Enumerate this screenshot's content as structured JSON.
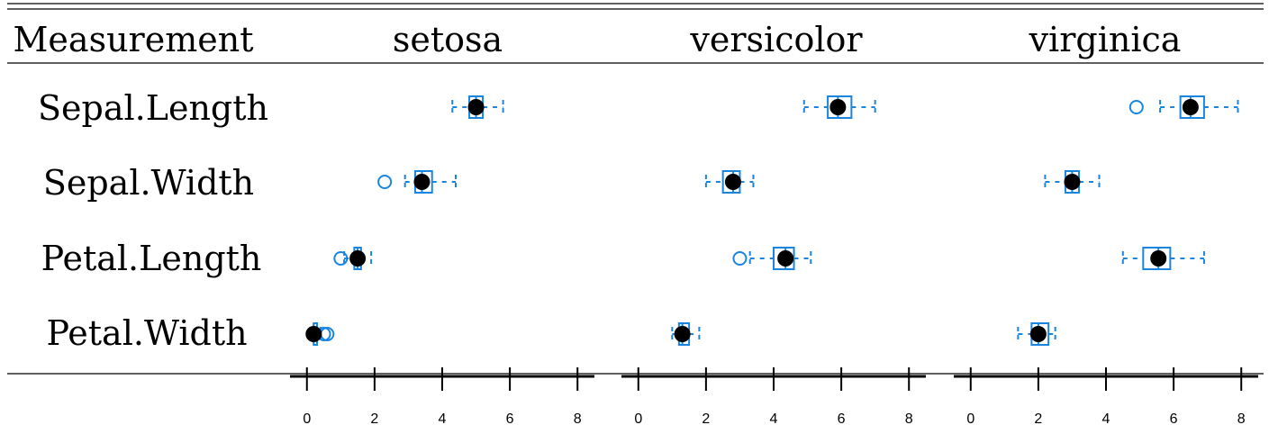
{
  "table": {
    "header_label": "Measurement",
    "rows": [
      "Sepal.Length",
      "Sepal.Width",
      "Petal.Length",
      "Petal.Width"
    ]
  },
  "colors": {
    "box": "#1a85e0",
    "median_point": "#000000",
    "rule": "#000000"
  },
  "chart_data": {
    "type": "boxplot",
    "xlim": [
      -0.5,
      8.5
    ],
    "ticks": [
      0,
      2,
      4,
      6,
      8
    ],
    "groups": [
      {
        "name": "setosa",
        "rows": [
          {
            "measure": "Sepal.Length",
            "min": 4.3,
            "q1": 4.8,
            "median": 5.0,
            "q3": 5.2,
            "max": 5.8,
            "outliers": []
          },
          {
            "measure": "Sepal.Width",
            "min": 2.9,
            "q1": 3.2,
            "median": 3.4,
            "q3": 3.7,
            "max": 4.4,
            "outliers": [
              2.3
            ]
          },
          {
            "measure": "Petal.Length",
            "min": 1.1,
            "q1": 1.4,
            "median": 1.5,
            "q3": 1.6,
            "max": 1.9,
            "outliers": [
              1.0
            ]
          },
          {
            "measure": "Petal.Width",
            "min": 0.1,
            "q1": 0.2,
            "median": 0.2,
            "q3": 0.3,
            "max": 0.4,
            "outliers": [
              0.5,
              0.6
            ]
          }
        ]
      },
      {
        "name": "versicolor",
        "rows": [
          {
            "measure": "Sepal.Length",
            "min": 4.9,
            "q1": 5.6,
            "median": 5.9,
            "q3": 6.3,
            "max": 7.0,
            "outliers": []
          },
          {
            "measure": "Sepal.Width",
            "min": 2.0,
            "q1": 2.5,
            "median": 2.8,
            "q3": 3.0,
            "max": 3.4,
            "outliers": []
          },
          {
            "measure": "Petal.Length",
            "min": 3.3,
            "q1": 4.0,
            "median": 4.35,
            "q3": 4.6,
            "max": 5.1,
            "outliers": [
              3.0
            ]
          },
          {
            "measure": "Petal.Width",
            "min": 1.0,
            "q1": 1.2,
            "median": 1.3,
            "q3": 1.5,
            "max": 1.8,
            "outliers": []
          }
        ]
      },
      {
        "name": "virginica",
        "rows": [
          {
            "measure": "Sepal.Length",
            "min": 5.6,
            "q1": 6.2,
            "median": 6.5,
            "q3": 6.9,
            "max": 7.9,
            "outliers": [
              4.9
            ]
          },
          {
            "measure": "Sepal.Width",
            "min": 2.2,
            "q1": 2.8,
            "median": 3.0,
            "q3": 3.2,
            "max": 3.8,
            "outliers": []
          },
          {
            "measure": "Petal.Length",
            "min": 4.5,
            "q1": 5.1,
            "median": 5.55,
            "q3": 5.9,
            "max": 6.9,
            "outliers": []
          },
          {
            "measure": "Petal.Width",
            "min": 1.4,
            "q1": 1.8,
            "median": 2.0,
            "q3": 2.3,
            "max": 2.5,
            "outliers": []
          }
        ]
      }
    ]
  }
}
